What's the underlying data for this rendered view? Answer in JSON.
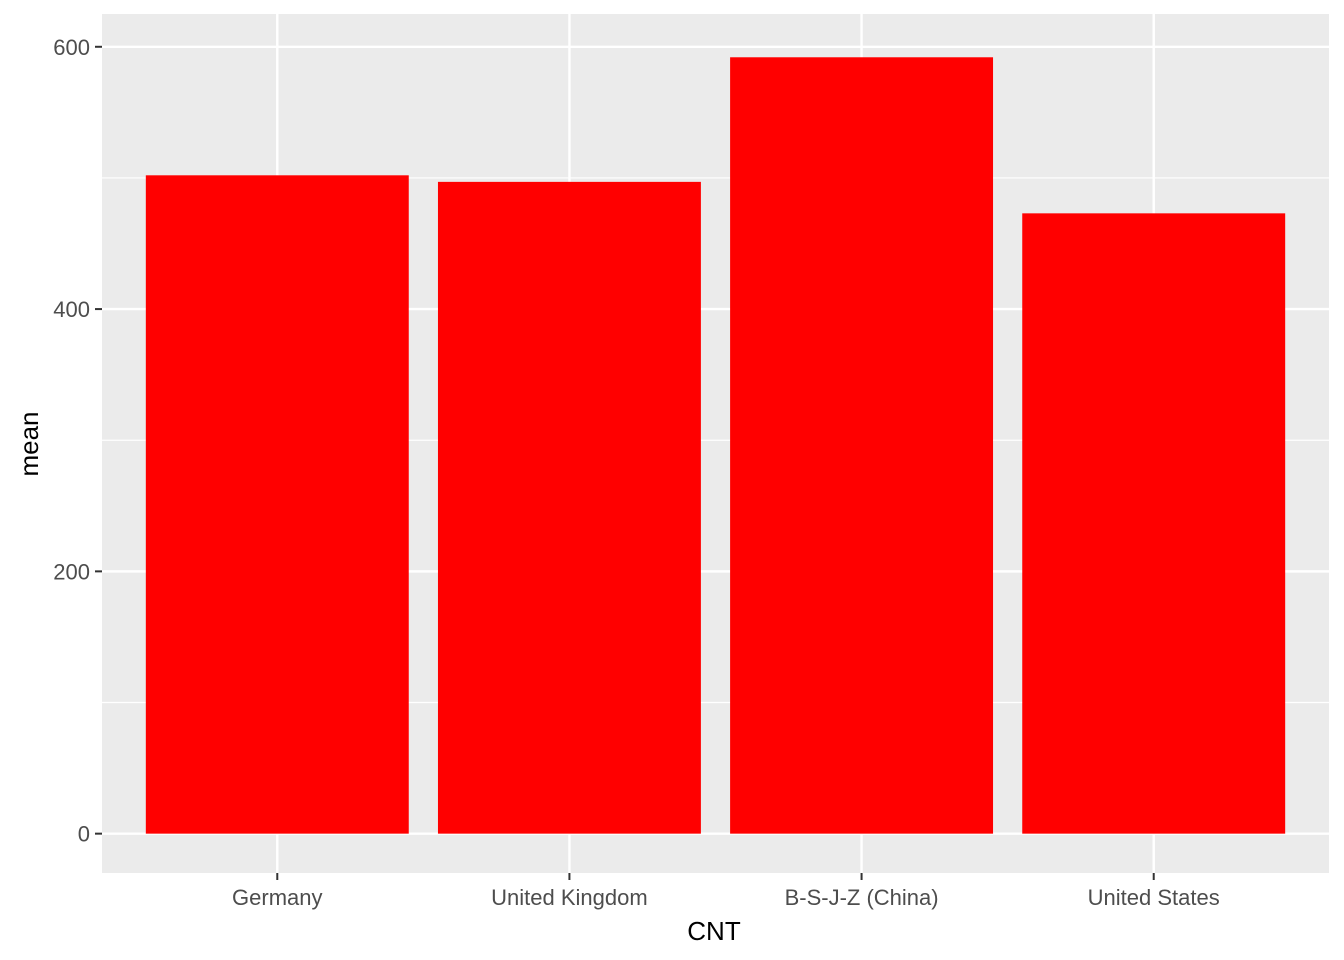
{
  "chart_data": {
    "type": "bar",
    "title": "",
    "xlabel": "CNT",
    "ylabel": "mean",
    "categories": [
      "Germany",
      "United Kingdom",
      "B-S-J-Z (China)",
      "United States"
    ],
    "values": [
      502,
      497,
      592,
      473
    ],
    "ylim": [
      -30,
      625
    ],
    "yticks": [
      0,
      200,
      400,
      600
    ],
    "grid": true,
    "legend": "none",
    "colors": {
      "bar": "#FF0000",
      "panel_background": "#EBEBEB",
      "grid_major": "#FFFFFF",
      "tick_text": "#4D4D4D",
      "axis_title": "#000000"
    }
  }
}
